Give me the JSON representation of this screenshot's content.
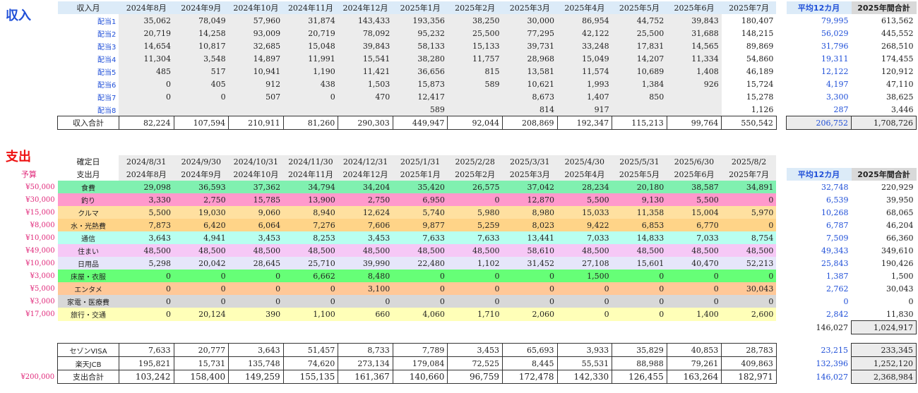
{
  "income": {
    "title": "収入",
    "header": {
      "label": "収入月",
      "avg": "平均12カ月",
      "total": "2025年間合計"
    },
    "months": [
      "2024年8月",
      "2024年9月",
      "2024年10月",
      "2024年11月",
      "2024年12月",
      "2025年1月",
      "2025年2月",
      "2025年3月",
      "2025年4月",
      "2025年5月",
      "2025年6月",
      "2025年7月"
    ],
    "rows": [
      {
        "label": "配当1",
        "values": [
          "35,062",
          "78,049",
          "57,960",
          "31,874",
          "143,433",
          "193,356",
          "38,250",
          "30,000",
          "86,954",
          "44,752",
          "39,843",
          "180,407"
        ],
        "avg": "79,995",
        "total": "613,562"
      },
      {
        "label": "配当2",
        "values": [
          "20,719",
          "14,258",
          "93,009",
          "20,719",
          "78,092",
          "95,232",
          "25,500",
          "77,295",
          "42,122",
          "25,500",
          "31,688",
          "148,215"
        ],
        "avg": "56,029",
        "total": "445,552"
      },
      {
        "label": "配当3",
        "values": [
          "14,654",
          "10,817",
          "32,685",
          "15,048",
          "39,843",
          "58,133",
          "15,133",
          "39,731",
          "33,248",
          "17,831",
          "14,565",
          "89,869"
        ],
        "avg": "31,796",
        "total": "268,510"
      },
      {
        "label": "配当4",
        "values": [
          "11,304",
          "3,548",
          "14,897",
          "11,991",
          "15,541",
          "38,280",
          "11,757",
          "28,968",
          "15,049",
          "14,207",
          "11,334",
          "54,860"
        ],
        "avg": "19,311",
        "total": "174,455"
      },
      {
        "label": "配当5",
        "values": [
          "485",
          "517",
          "10,941",
          "1,190",
          "11,421",
          "36,656",
          "815",
          "13,581",
          "11,574",
          "10,689",
          "1,408",
          "46,189"
        ],
        "avg": "12,122",
        "total": "120,912"
      },
      {
        "label": "配当6",
        "values": [
          "0",
          "405",
          "912",
          "438",
          "1,503",
          "15,873",
          "589",
          "10,621",
          "1,993",
          "1,384",
          "926",
          "15,724"
        ],
        "avg": "4,197",
        "total": "47,110"
      },
      {
        "label": "配当7",
        "values": [
          "0",
          "0",
          "507",
          "0",
          "470",
          "12,417",
          "",
          "8,673",
          "1,407",
          "850",
          "",
          "15,278"
        ],
        "avg": "3,300",
        "total": "38,625"
      },
      {
        "label": "配当8",
        "values": [
          "",
          "",
          "",
          "",
          "",
          "589",
          "",
          "814",
          "917",
          "",
          "",
          "1,126"
        ],
        "avg": "287",
        "total": "3,446"
      }
    ],
    "sum": {
      "label": "収入合計",
      "values": [
        "82,224",
        "107,594",
        "210,911",
        "81,260",
        "290,303",
        "449,947",
        "92,044",
        "208,869",
        "192,347",
        "115,213",
        "99,764",
        "550,542"
      ],
      "avg": "206,752",
      "total": "1,708,726"
    }
  },
  "expense": {
    "title": "支出",
    "budget_header": "予算",
    "confirm_label": "確定日",
    "confirm_dates": [
      "2024/8/31",
      "2024/9/30",
      "2024/10/31",
      "2024/11/30",
      "2024/12/31",
      "2025/1/31",
      "2025/2/28",
      "2025/3/31",
      "2025/4/30",
      "2025/5/31",
      "2025/6/30",
      "2025/8/2"
    ],
    "header": {
      "label": "支出月",
      "avg": "平均12カ月",
      "total": "2025年間合計"
    },
    "months": [
      "2024年8月",
      "2024年9月",
      "2024年10月",
      "2024年11月",
      "2024年12月",
      "2025年1月",
      "2025年2月",
      "2025年3月",
      "2025年4月",
      "2025年5月",
      "2025年6月",
      "2025年7月"
    ],
    "rows": [
      {
        "budget": "¥50,000",
        "label": "食費",
        "color": "#80f0b0",
        "values": [
          "29,098",
          "36,593",
          "37,362",
          "34,794",
          "34,204",
          "35,420",
          "26,575",
          "37,042",
          "28,234",
          "20,180",
          "38,587",
          "34,891"
        ],
        "avg": "32,748",
        "total": "220,929"
      },
      {
        "budget": "¥30,000",
        "label": "釣り",
        "color": "#ff99cc",
        "values": [
          "3,330",
          "2,750",
          "15,785",
          "13,900",
          "2,750",
          "6,950",
          "0",
          "12,870",
          "5,500",
          "9,130",
          "5,500",
          "0"
        ],
        "avg": "6,539",
        "total": "39,950"
      },
      {
        "budget": "¥15,000",
        "label": "クルマ",
        "color": "#ffe0a0",
        "values": [
          "5,500",
          "19,030",
          "9,060",
          "8,940",
          "12,624",
          "5,740",
          "5,980",
          "8,980",
          "15,033",
          "11,358",
          "15,004",
          "5,970"
        ],
        "avg": "10,268",
        "total": "68,065"
      },
      {
        "budget": "¥8,000",
        "label": "水・光熱費",
        "color": "#ffd488",
        "values": [
          "7,873",
          "6,420",
          "6,064",
          "7,276",
          "7,606",
          "9,877",
          "5,259",
          "8,023",
          "9,422",
          "6,853",
          "6,770",
          "0"
        ],
        "avg": "6,787",
        "total": "46,204"
      },
      {
        "budget": "¥10,000",
        "label": "通信",
        "color": "#b8fff0",
        "values": [
          "3,643",
          "4,941",
          "3,453",
          "8,253",
          "3,453",
          "7,633",
          "7,633",
          "13,441",
          "7,033",
          "14,833",
          "7,033",
          "8,754"
        ],
        "avg": "7,509",
        "total": "66,360"
      },
      {
        "budget": "¥49,000",
        "label": "住まい",
        "color": "#f6c8f6",
        "values": [
          "48,500",
          "48,500",
          "48,500",
          "48,500",
          "48,500",
          "48,500",
          "48,500",
          "58,610",
          "48,500",
          "48,500",
          "48,500",
          "48,500"
        ],
        "avg": "49,343",
        "total": "349,610"
      },
      {
        "budget": "¥10,000",
        "label": "日用品",
        "color": "#e6e6fa",
        "values": [
          "5,298",
          "20,042",
          "28,645",
          "25,710",
          "39,990",
          "22,480",
          "1,102",
          "31,452",
          "27,108",
          "15,601",
          "40,470",
          "52,213"
        ],
        "avg": "25,843",
        "total": "190,426"
      },
      {
        "budget": "¥3,000",
        "label": "床屋・衣服",
        "color": "#66ff77",
        "values": [
          "0",
          "0",
          "0",
          "6,662",
          "8,480",
          "0",
          "0",
          "0",
          "1,500",
          "0",
          "0",
          "0"
        ],
        "avg": "1,387",
        "total": "1,500"
      },
      {
        "budget": "¥5,000",
        "label": "エンタメ",
        "color": "#ffc898",
        "values": [
          "0",
          "0",
          "0",
          "0",
          "3,100",
          "0",
          "0",
          "0",
          "0",
          "0",
          "0",
          "30,043"
        ],
        "avg": "2,762",
        "total": "30,043"
      },
      {
        "budget": "¥3,000",
        "label": "家電・医療費",
        "color": "#d8d8d8",
        "values": [
          "0",
          "0",
          "0",
          "0",
          "0",
          "0",
          "0",
          "0",
          "0",
          "0",
          "0",
          "0"
        ],
        "avg": "0",
        "total": "0"
      },
      {
        "budget": "¥17,000",
        "label": "旅行・交通",
        "color": "#ffffb8",
        "values": [
          "0",
          "20,124",
          "390",
          "1,100",
          "660",
          "4,060",
          "1,710",
          "2,060",
          "0",
          "0",
          "1,400",
          "2,600"
        ],
        "avg": "2,842",
        "total": "11,830"
      }
    ],
    "subtotal": {
      "avg": "146,027",
      "total": "1,024,917"
    },
    "cards": [
      {
        "label": "セゾンVISA",
        "values": [
          "7,633",
          "20,777",
          "3,643",
          "51,457",
          "8,733",
          "7,789",
          "3,453",
          "65,693",
          "3,933",
          "35,829",
          "40,853",
          "28,783"
        ],
        "avg": "23,215",
        "total": "233,345"
      },
      {
        "label": "楽天JCB",
        "values": [
          "195,821",
          "15,731",
          "135,748",
          "74,620",
          "273,134",
          "179,084",
          "72,525",
          "8,445",
          "55,531",
          "88,988",
          "79,261",
          "409,863"
        ],
        "avg": "132,396",
        "total": "1,252,120"
      }
    ],
    "sum": {
      "budget": "¥200,000",
      "label": "支出合計",
      "values": [
        "103,242",
        "158,400",
        "149,259",
        "155,135",
        "161,367",
        "140,660",
        "96,759",
        "172,478",
        "142,330",
        "126,455",
        "163,264",
        "182,971"
      ],
      "avg": "146,027",
      "total": "2,368,984"
    }
  }
}
